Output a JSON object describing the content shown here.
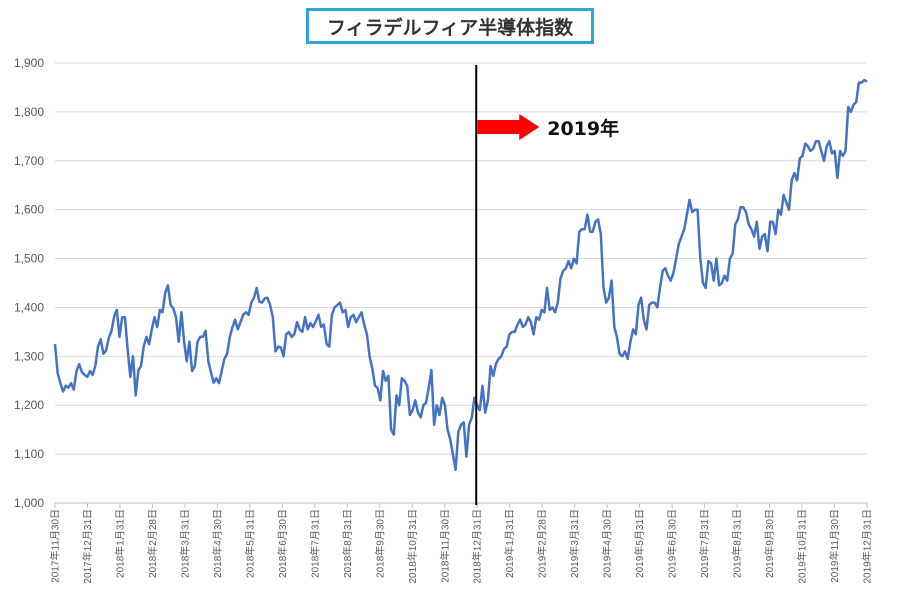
{
  "chart_data": {
    "type": "line",
    "title": "フィラデルフィア半導体指数",
    "xlabel": "",
    "ylabel": "",
    "ylim": [
      1000,
      1900
    ],
    "yticks": [
      "1,000",
      "1,100",
      "1,200",
      "1,300",
      "1,400",
      "1,500",
      "1,600",
      "1,700",
      "1,800",
      "1,900"
    ],
    "xticks": [
      "2017年11月30日",
      "2017年12月31日",
      "2018年1月31日",
      "2018年2月28日",
      "2018年3月31日",
      "2018年4月30日",
      "2018年5月31日",
      "2018年6月30日",
      "2018年7月31日",
      "2018年8月31日",
      "2018年9月30日",
      "2018年10月31日",
      "2018年11月30日",
      "2018年12月31日",
      "2019年1月31日",
      "2019年2月28日",
      "2019年3月31日",
      "2019年4月30日",
      "2019年5月31日",
      "2019年6月30日",
      "2019年7月31日",
      "2019年8月31日",
      "2019年9月30日",
      "2019年10月31日",
      "2019年11月30日",
      "2019年12月31日"
    ],
    "grid": true,
    "line_color": "#4472c4",
    "annotation": {
      "text": "2019年",
      "at": "2018年12月31日",
      "line_color": "#000000",
      "arrow_color": "#ff0000"
    },
    "series": [
      {
        "values": [
          1325,
          1265,
          1245,
          1228,
          1240,
          1236,
          1245,
          1232,
          1270,
          1284,
          1268,
          1262,
          1258,
          1270,
          1262,
          1280,
          1320,
          1335,
          1305,
          1312,
          1338,
          1352,
          1382,
          1395,
          1340,
          1380,
          1380,
          1315,
          1258,
          1300,
          1220,
          1272,
          1280,
          1320,
          1340,
          1325,
          1355,
          1380,
          1360,
          1395,
          1390,
          1430,
          1445,
          1405,
          1398,
          1380,
          1330,
          1390,
          1330,
          1290,
          1330,
          1270,
          1280,
          1330,
          1340,
          1340,
          1352,
          1290,
          1268,
          1246,
          1255,
          1245,
          1270,
          1295,
          1305,
          1340,
          1360,
          1375,
          1355,
          1370,
          1385,
          1390,
          1385,
          1410,
          1420,
          1440,
          1412,
          1410,
          1418,
          1420,
          1405,
          1380,
          1310,
          1320,
          1318,
          1300,
          1345,
          1350,
          1340,
          1345,
          1370,
          1355,
          1350,
          1380,
          1355,
          1368,
          1360,
          1372,
          1385,
          1360,
          1365,
          1325,
          1320,
          1385,
          1400,
          1405,
          1410,
          1390,
          1395,
          1360,
          1380,
          1385,
          1370,
          1380,
          1390,
          1365,
          1345,
          1300,
          1275,
          1240,
          1235,
          1210,
          1270,
          1250,
          1260,
          1150,
          1140,
          1220,
          1200,
          1255,
          1250,
          1240,
          1180,
          1190,
          1210,
          1185,
          1175,
          1200,
          1205,
          1235,
          1272,
          1160,
          1200,
          1180,
          1215,
          1200,
          1150,
          1130,
          1100,
          1068,
          1145,
          1160,
          1165,
          1095,
          1160,
          1175,
          1215,
          1200,
          1190,
          1240,
          1185,
          1210,
          1280,
          1260,
          1285,
          1295,
          1300,
          1315,
          1320,
          1345,
          1350,
          1350,
          1365,
          1375,
          1360,
          1365,
          1380,
          1370,
          1345,
          1380,
          1375,
          1395,
          1390,
          1440,
          1395,
          1400,
          1390,
          1410,
          1460,
          1475,
          1480,
          1495,
          1480,
          1500,
          1490,
          1555,
          1560,
          1560,
          1590,
          1555,
          1555,
          1575,
          1580,
          1550,
          1440,
          1410,
          1420,
          1455,
          1360,
          1340,
          1305,
          1300,
          1310,
          1295,
          1330,
          1355,
          1345,
          1405,
          1420,
          1375,
          1355,
          1405,
          1410,
          1410,
          1400,
          1440,
          1475,
          1480,
          1465,
          1455,
          1470,
          1500,
          1530,
          1545,
          1560,
          1590,
          1620,
          1595,
          1600,
          1600,
          1500,
          1450,
          1440,
          1495,
          1490,
          1455,
          1500,
          1445,
          1450,
          1465,
          1455,
          1500,
          1510,
          1570,
          1580,
          1605,
          1605,
          1595,
          1570,
          1560,
          1545,
          1575,
          1520,
          1545,
          1550,
          1515,
          1575,
          1575,
          1550,
          1600,
          1590,
          1630,
          1615,
          1600,
          1660,
          1675,
          1660,
          1705,
          1710,
          1735,
          1730,
          1720,
          1725,
          1740,
          1740,
          1720,
          1700,
          1730,
          1740,
          1715,
          1720,
          1665,
          1720,
          1710,
          1720,
          1810,
          1800,
          1815,
          1820,
          1860,
          1860,
          1865,
          1862
        ]
      }
    ]
  }
}
